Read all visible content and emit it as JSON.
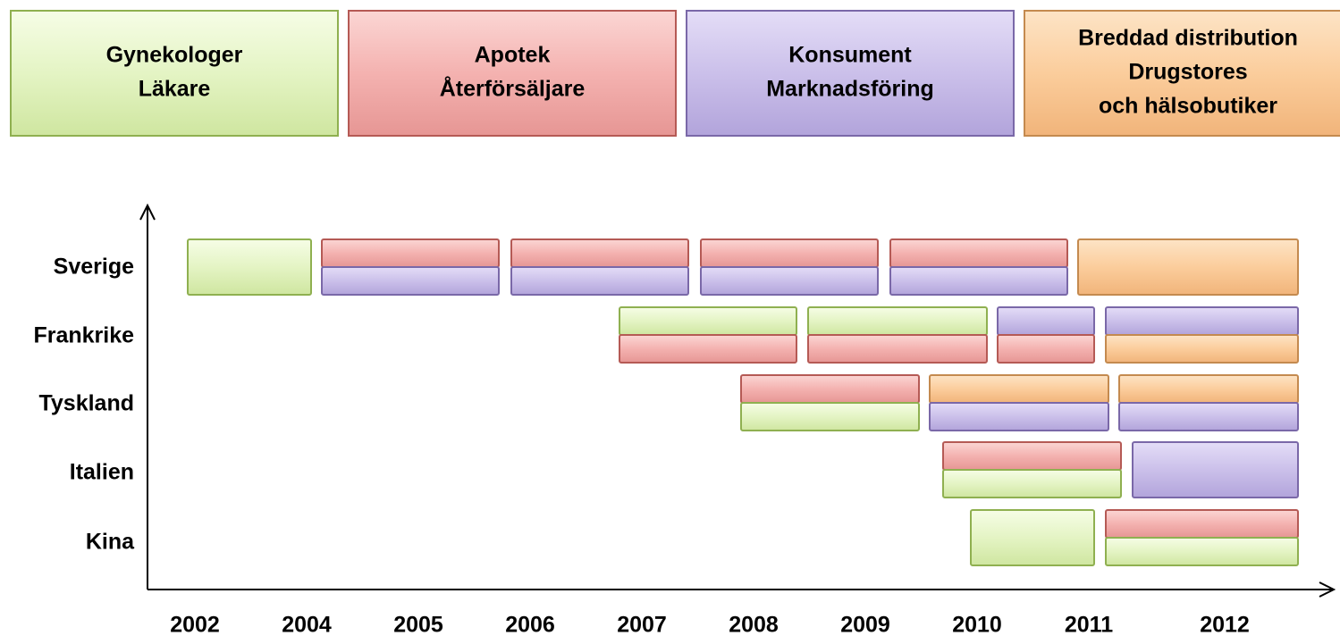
{
  "header": {
    "boxes": [
      {
        "lines": [
          "Gynekologer",
          "Läkare"
        ]
      },
      {
        "lines": [
          "Apotek",
          "Återförsäljare"
        ]
      },
      {
        "lines": [
          "Konsument",
          "Marknadsföring"
        ]
      },
      {
        "lines": [
          "Breddad distribution",
          "Drugstores",
          "och hälsobutiker"
        ]
      }
    ]
  },
  "rows": [
    "Sverige",
    "Frankrike",
    "Tyskland",
    "Italien",
    "Kina"
  ],
  "years": [
    "2002",
    "2004",
    "2005",
    "2006",
    "2007",
    "2008",
    "2009",
    "2010",
    "2011",
    "2012"
  ]
}
